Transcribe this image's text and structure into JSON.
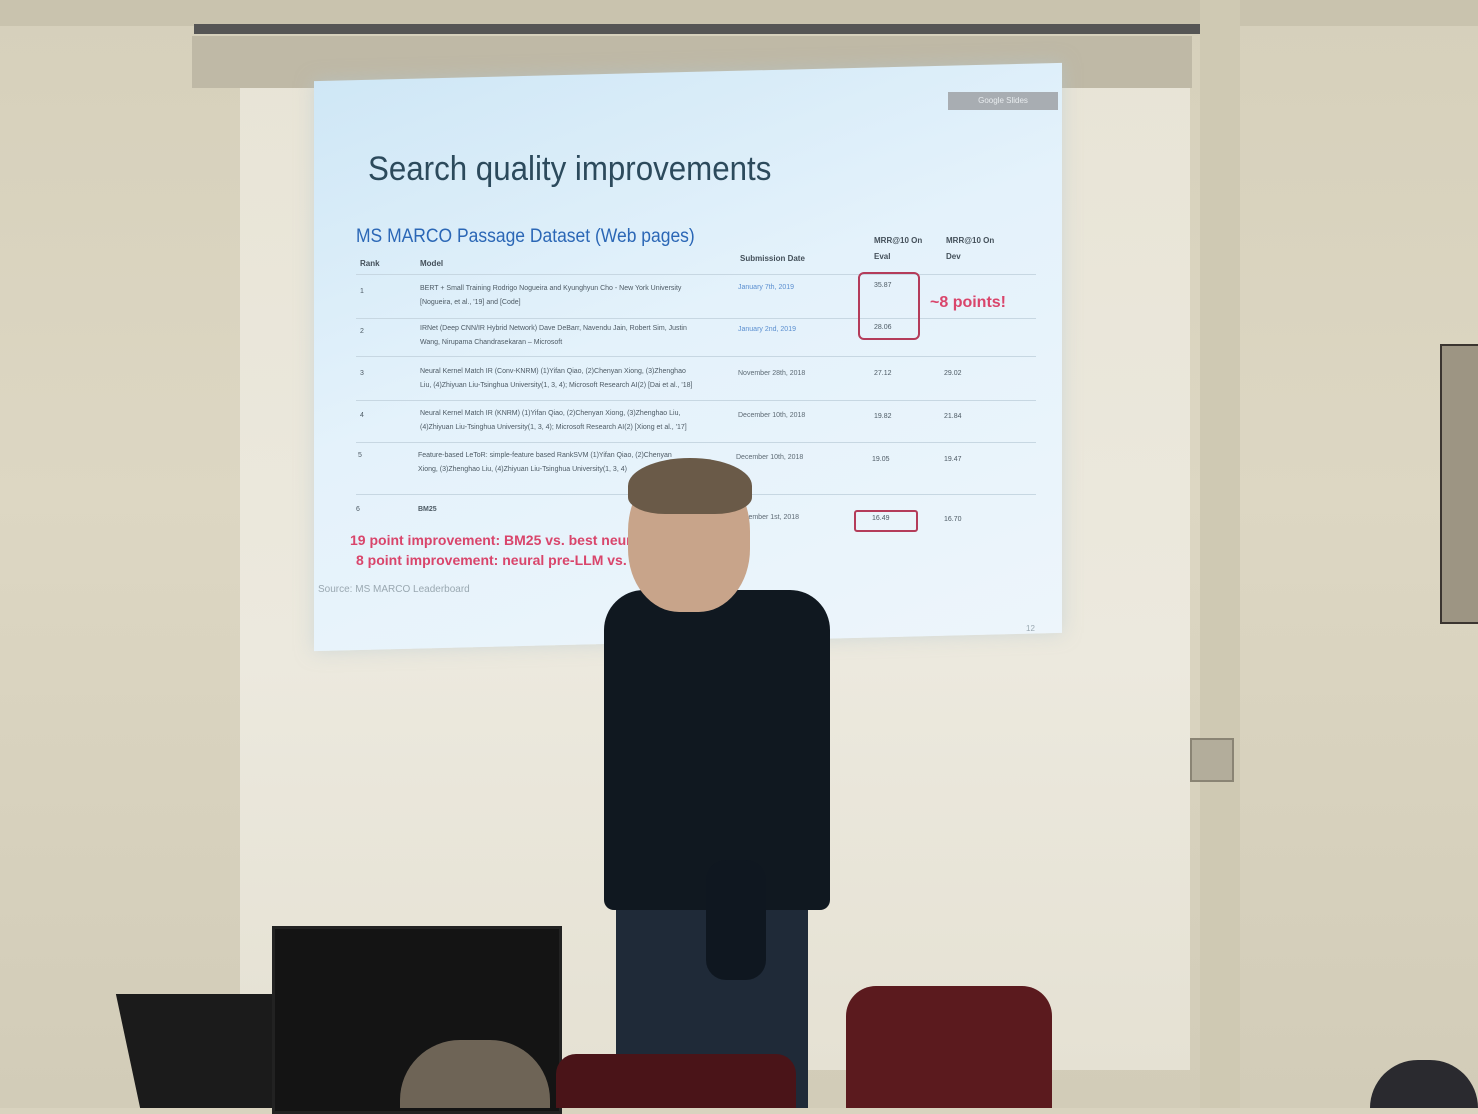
{
  "slide": {
    "corner_button": "Google Slides",
    "title": "Search quality improvements",
    "subtitle": "MS MARCO Passage Dataset (Web pages)",
    "headers": {
      "rank": "Rank",
      "model": "Model",
      "date": "Submission Date",
      "eval_1": "MRR@10 On",
      "eval_2": "Eval",
      "dev_1": "MRR@10 On",
      "dev_2": "Dev"
    },
    "rows": [
      {
        "rank": "1",
        "model_1": "BERT + Small Training Rodrigo Nogueira and Kyunghyun Cho - New York University",
        "model_2": "[Nogueira, et al., '19] and [Code]",
        "date": "January 7th, 2019",
        "eval": "35.87",
        "dev": ""
      },
      {
        "rank": "2",
        "model_1": "IRNet (Deep CNN/IR Hybrid Network) Dave DeBarr, Navendu Jain, Robert Sim, Justin",
        "model_2": "Wang, Nirupama Chandrasekaran – Microsoft",
        "date": "January 2nd, 2019",
        "eval": "28.06",
        "dev": ""
      },
      {
        "rank": "3",
        "model_1": "Neural Kernel Match IR (Conv-KNRM) (1)Yifan Qiao, (2)Chenyan Xiong, (3)Zhenghao",
        "model_2": "Liu, (4)Zhiyuan Liu-Tsinghua University(1, 3, 4); Microsoft Research AI(2) [Dai et al., '18]",
        "date": "November 28th, 2018",
        "eval": "27.12",
        "dev": "29.02"
      },
      {
        "rank": "4",
        "model_1": "Neural Kernel Match IR (KNRM) (1)Yifan Qiao, (2)Chenyan Xiong, (3)Zhenghao Liu,",
        "model_2": "(4)Zhiyuan Liu-Tsinghua University(1, 3, 4); Microsoft Research AI(2) [Xiong et al., '17]",
        "date": "December 10th, 2018",
        "eval": "19.82",
        "dev": "21.84"
      },
      {
        "rank": "5",
        "model_1": "Feature-based LeToR: simple-feature based RankSVM (1)Yifan Qiao, (2)Chenyan",
        "model_2": "Xiong, (3)Zhenghao Liu, (4)Zhiyuan Liu-Tsinghua University(1, 3, 4)",
        "date": "December 10th, 2018",
        "eval": "19.05",
        "dev": "19.47"
      },
      {
        "rank": "6",
        "model_1": "BM25",
        "model_2": "",
        "date": "November 1st, 2018",
        "eval": "16.49",
        "dev": "16.70"
      }
    ],
    "annotation_points": "~8 points!",
    "annotation_line1": "19 point improvement: BM25 vs. best neural",
    "annotation_line2": "8 point improvement: neural pre-LLM vs. LLM",
    "source": "Source: MS MARCO Leaderboard",
    "page_number": "12"
  },
  "colors": {
    "slide_bg": "#e4f2fb",
    "title": "#2c4a5c",
    "subtitle": "#2b67b6",
    "highlight": "#d9456b",
    "wall": "#d9d3bf"
  }
}
